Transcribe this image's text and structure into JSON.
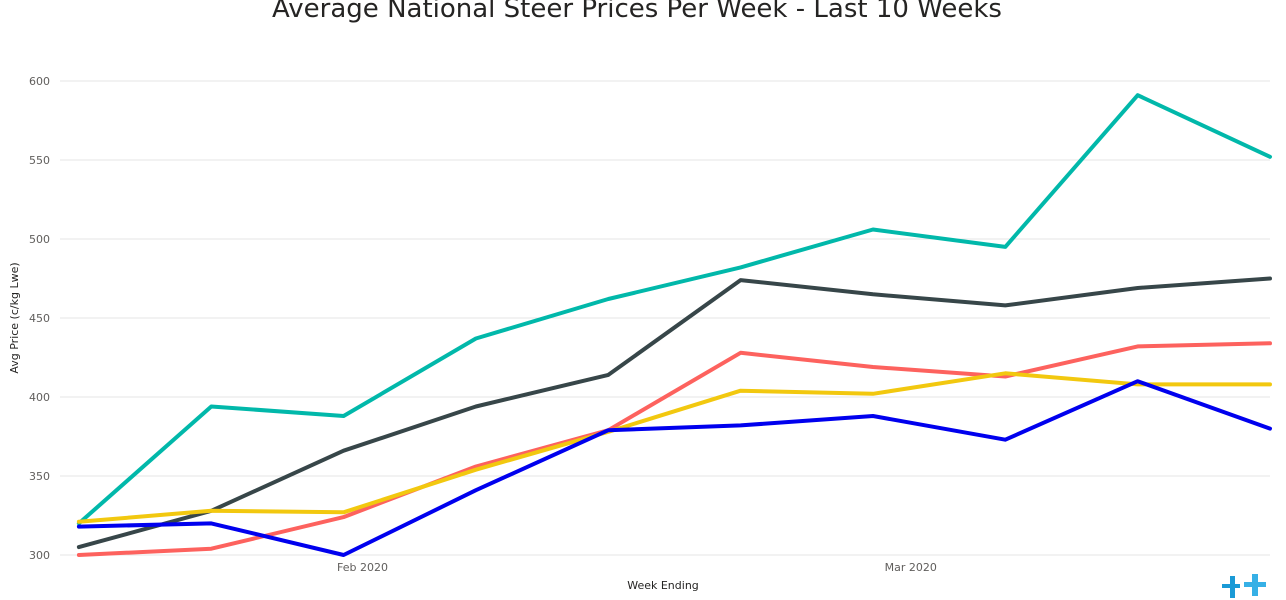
{
  "chart_data": {
    "type": "line",
    "title": "Average National Steer Prices Per Week - Last 10 Weeks",
    "xlabel": "Week Ending",
    "ylabel": "Avg Price (c/kg Lwe)",
    "ylim": [
      300,
      600
    ],
    "yticks": [
      300,
      350,
      400,
      450,
      500,
      550,
      600
    ],
    "x": [
      "2020-01-17",
      "2020-01-24",
      "2020-01-31",
      "2020-02-07",
      "2020-02-14",
      "2020-02-21",
      "2020-02-28",
      "2020-03-06",
      "2020-03-13",
      "2020-03-20"
    ],
    "xlim": [
      "2020-01-16",
      "2020-03-20"
    ],
    "xticks": [
      {
        "date": "2020-02-01",
        "label": "Feb 2020"
      },
      {
        "date": "2020-03-01",
        "label": "Mar 2020"
      }
    ],
    "grid": "horizontal",
    "series": [
      {
        "color": "#01b8aa",
        "values": [
          320,
          394,
          388,
          437,
          462,
          482,
          506,
          495,
          591,
          552
        ]
      },
      {
        "color": "#374649",
        "values": [
          305,
          328,
          366,
          394,
          414,
          474,
          465,
          458,
          469,
          475
        ]
      },
      {
        "color": "#fd625e",
        "values": [
          300,
          304,
          324,
          356,
          379,
          428,
          419,
          413,
          432,
          434
        ]
      },
      {
        "color": "#f2c80f",
        "values": [
          321,
          328,
          327,
          354,
          378,
          404,
          402,
          415,
          408,
          408
        ]
      },
      {
        "color": "#0000ee",
        "values": [
          318,
          320,
          300,
          341,
          379,
          382,
          388,
          373,
          410,
          380
        ]
      }
    ]
  },
  "logo": {
    "name": "brand-logo",
    "color": "#1a9ad6"
  }
}
